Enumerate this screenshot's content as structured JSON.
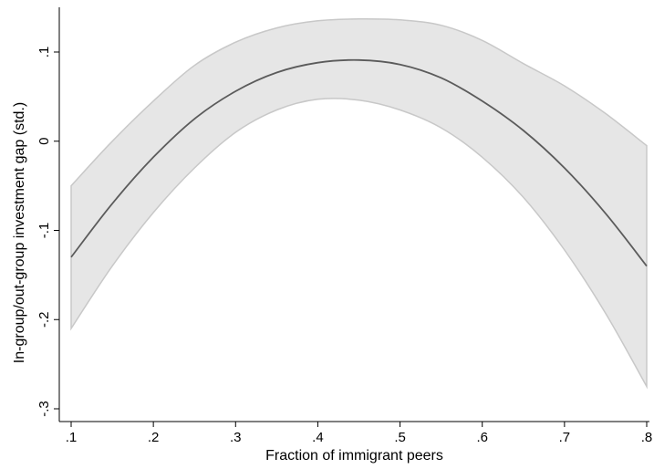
{
  "chart_data": {
    "type": "line",
    "title": "",
    "xlabel": "Fraction of immigrant peers",
    "ylabel": "In-group/out-group investment gap (std.)",
    "xlim": [
      0.1,
      0.8
    ],
    "ylim": [
      -0.3,
      0.1
    ],
    "x_ticks": [
      0.1,
      0.2,
      0.3,
      0.4,
      0.5,
      0.6,
      0.7,
      0.8
    ],
    "x_tick_labels": [
      ".1",
      ".2",
      ".3",
      ".4",
      ".5",
      ".6",
      ".7",
      ".8"
    ],
    "y_ticks": [
      -0.3,
      -0.2,
      -0.1,
      0,
      0.1
    ],
    "y_tick_labels": [
      "-.3",
      "-.2",
      "-.1",
      "0",
      ".1"
    ],
    "grid": false,
    "legend": "none",
    "x": [
      0.1,
      0.15,
      0.2,
      0.25,
      0.3,
      0.35,
      0.4,
      0.45,
      0.5,
      0.55,
      0.6,
      0.65,
      0.7,
      0.75,
      0.8
    ],
    "series": [
      {
        "role": "estimate",
        "values": [
          -0.13,
          -0.07,
          -0.018,
          0.025,
          0.056,
          0.077,
          0.088,
          0.091,
          0.086,
          0.071,
          0.045,
          0.012,
          -0.03,
          -0.081,
          -0.14
        ]
      }
    ],
    "confidence_band": {
      "lower": [
        -0.21,
        -0.14,
        -0.08,
        -0.03,
        0.01,
        0.035,
        0.047,
        0.046,
        0.035,
        0.015,
        -0.018,
        -0.063,
        -0.122,
        -0.193,
        -0.275
      ],
      "upper": [
        -0.05,
        0.0,
        0.045,
        0.085,
        0.111,
        0.127,
        0.135,
        0.137,
        0.136,
        0.13,
        0.113,
        0.087,
        0.062,
        0.031,
        -0.005
      ]
    },
    "colors": {
      "line": "#5b5b5b",
      "band_fill": "#e6e6e6",
      "band_edge": "#c8c8c8",
      "axis": "#000000"
    }
  }
}
